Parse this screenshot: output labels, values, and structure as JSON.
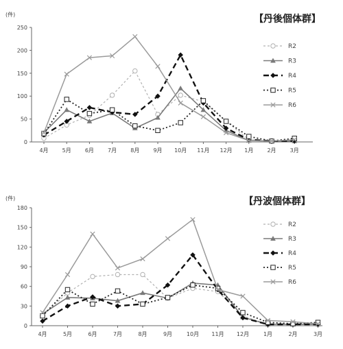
{
  "chart_data": [
    {
      "type": "line",
      "title": "【丹後個体群】",
      "y_unit": "(件)",
      "categories": [
        "4月",
        "5月",
        "6月",
        "7月",
        "8月",
        "9月",
        "10月",
        "11月",
        "12月",
        "1月",
        "2月",
        "3月"
      ],
      "ylim": [
        0,
        250
      ],
      "yticks": [
        0,
        50,
        100,
        150,
        200,
        250
      ],
      "grid": false,
      "legend_position": "right",
      "series": [
        {
          "name": "R2",
          "values": [
            8,
            37,
            58,
            102,
            155,
            60,
            102,
            88,
            45,
            5,
            2,
            3
          ],
          "color": "#b0b0b0",
          "dash": "3,3",
          "marker": "circle",
          "width": 1.2
        },
        {
          "name": "R3",
          "values": [
            20,
            70,
            45,
            63,
            30,
            53,
            117,
            70,
            25,
            3,
            2,
            2
          ],
          "color": "#7a7a7a",
          "dash": "",
          "marker": "triangle",
          "width": 1.6
        },
        {
          "name": "R4",
          "values": [
            15,
            45,
            75,
            65,
            60,
            100,
            190,
            85,
            30,
            5,
            2,
            2
          ],
          "color": "#111111",
          "dash": "8,5",
          "marker": "diamond",
          "width": 2.4
        },
        {
          "name": "R5",
          "values": [
            18,
            93,
            62,
            70,
            35,
            25,
            42,
            90,
            45,
            12,
            2,
            8
          ],
          "color": "#222222",
          "dash": "2,3",
          "marker": "square",
          "width": 1.8
        },
        {
          "name": "R6",
          "values": [
            20,
            148,
            184,
            188,
            230,
            165,
            85,
            55,
            20,
            3,
            2,
            5
          ],
          "color": "#9a9a9a",
          "dash": "",
          "marker": "x",
          "width": 1.5
        }
      ]
    },
    {
      "type": "line",
      "title": "【丹波個体群】",
      "y_unit": "(件)",
      "categories": [
        "4月",
        "5月",
        "6月",
        "7月",
        "8月",
        "9月",
        "10月",
        "11月",
        "12月",
        "1月",
        "2月",
        "3月"
      ],
      "ylim": [
        0,
        180
      ],
      "yticks": [
        0,
        30,
        60,
        90,
        120,
        150,
        180
      ],
      "grid": false,
      "legend_position": "right",
      "series": [
        {
          "name": "R2",
          "values": [
            16,
            50,
            75,
            78,
            78,
            42,
            57,
            52,
            15,
            2,
            3,
            2
          ],
          "color": "#b0b0b0",
          "dash": "3,3",
          "marker": "circle",
          "width": 1.2
        },
        {
          "name": "R3",
          "values": [
            18,
            43,
            42,
            38,
            50,
            42,
            65,
            62,
            13,
            2,
            2,
            2
          ],
          "color": "#7a7a7a",
          "dash": "",
          "marker": "triangle",
          "width": 1.6
        },
        {
          "name": "R4",
          "values": [
            7,
            30,
            44,
            30,
            33,
            62,
            108,
            55,
            12,
            2,
            2,
            2
          ],
          "color": "#111111",
          "dash": "8,5",
          "marker": "diamond",
          "width": 2.4
        },
        {
          "name": "R5",
          "values": [
            15,
            55,
            33,
            53,
            33,
            43,
            62,
            57,
            20,
            5,
            3,
            5
          ],
          "color": "#222222",
          "dash": "2,3",
          "marker": "square",
          "width": 1.8
        },
        {
          "name": "R6",
          "values": [
            20,
            78,
            140,
            88,
            102,
            133,
            162,
            55,
            45,
            8,
            6,
            3
          ],
          "color": "#9a9a9a",
          "dash": "",
          "marker": "x",
          "width": 1.5
        }
      ]
    }
  ]
}
